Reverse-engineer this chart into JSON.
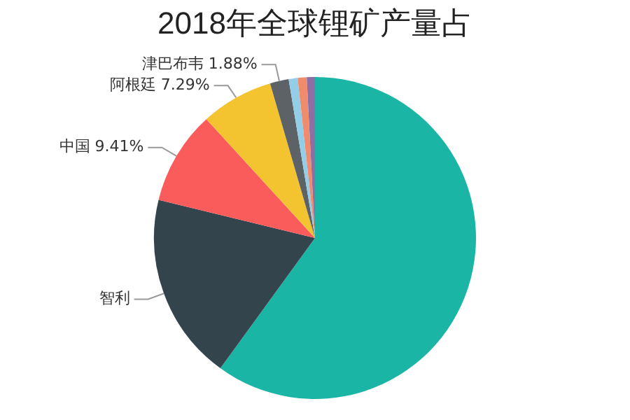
{
  "chart_data": {
    "type": "pie",
    "title": "2018年全球锂矿产量占",
    "categories": [
      null,
      "智利",
      "中国",
      "阿根廷",
      "津巴布韦",
      null,
      null,
      null
    ],
    "values": [
      60,
      18.8,
      9.41,
      7.29,
      1.88,
      0.9,
      0.9,
      0.82
    ],
    "value_labels": [
      null,
      null,
      "9.41%",
      "7.29%",
      "1.88%",
      null,
      null,
      null
    ],
    "colors": [
      "#1bb5a6",
      "#34444c",
      "#fa5c5c",
      "#f3c330",
      "#5d6266",
      "#93cde8",
      "#f08c6c",
      "#8e6fa5"
    ],
    "legend": false
  }
}
